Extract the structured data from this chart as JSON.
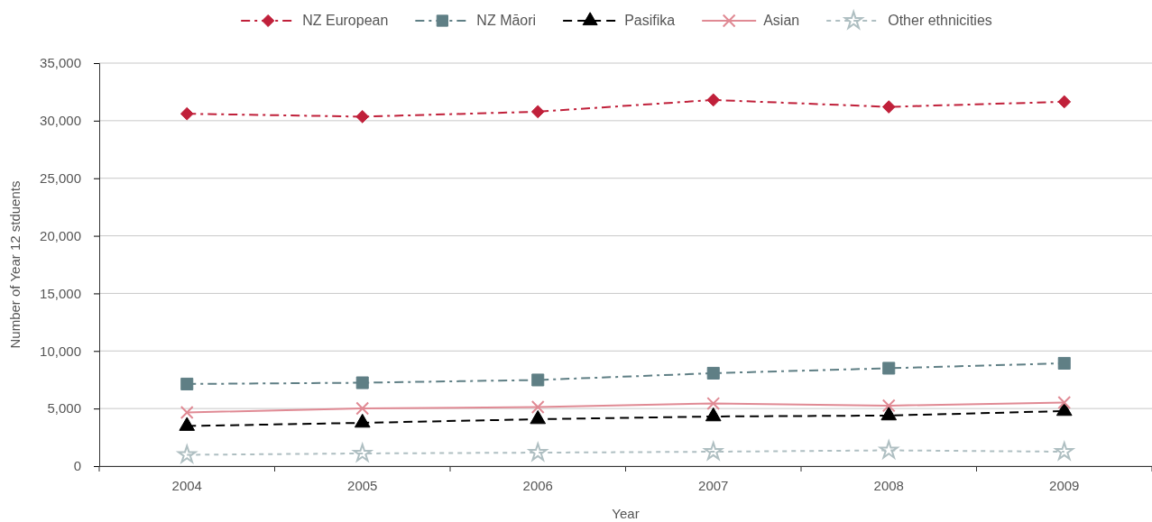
{
  "chart_data": {
    "type": "line",
    "xlabel": "Year",
    "ylabel": "Number of Year 12 stduents",
    "categories": [
      "2004",
      "2005",
      "2006",
      "2007",
      "2008",
      "2009"
    ],
    "series": [
      {
        "name": "NZ European",
        "color": "#c0203a",
        "marker": "diamond",
        "line_style": "dashdot",
        "values": [
          30600,
          30350,
          30780,
          31800,
          31200,
          31640
        ]
      },
      {
        "name": "NZ Māori",
        "color": "#5f7f85",
        "marker": "square",
        "line_style": "dashdot",
        "values": [
          7130,
          7240,
          7480,
          8070,
          8500,
          8930
        ]
      },
      {
        "name": "Pasifika",
        "color": "#000000",
        "marker": "triangle",
        "line_style": "dashed",
        "values": [
          3480,
          3760,
          4070,
          4310,
          4390,
          4780
        ]
      },
      {
        "name": "Asian",
        "color": "#e08a94",
        "marker": "cross",
        "line_style": "solid",
        "values": [
          4660,
          5010,
          5130,
          5440,
          5250,
          5520
        ]
      },
      {
        "name": "Other ethnicities",
        "color": "#afbfc2",
        "marker": "star",
        "line_style": "dotted",
        "values": [
          980,
          1100,
          1170,
          1250,
          1370,
          1250
        ]
      }
    ],
    "ylim": [
      0,
      35000
    ],
    "yticks": [
      0,
      {
        "value": 5000,
        "label": "5,000"
      },
      {
        "value": 10000,
        "label": "10,000"
      },
      {
        "value": 15000,
        "label": "15,000"
      },
      {
        "value": 20000,
        "label": "20,000"
      },
      {
        "value": 25000,
        "label": "25,000"
      },
      {
        "value": 30000,
        "label": "30,000"
      },
      {
        "value": 35000,
        "label": "35,000"
      }
    ],
    "grid": "y",
    "legend": "top"
  }
}
